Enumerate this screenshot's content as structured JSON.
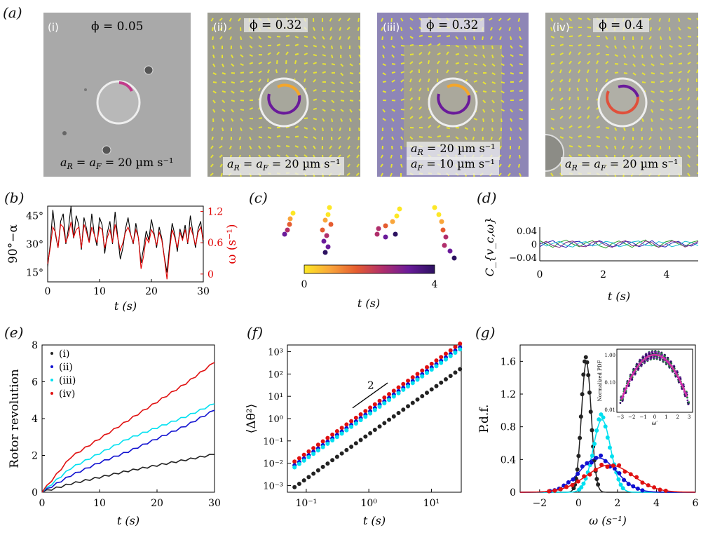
{
  "panel_labels": {
    "a": "(a)",
    "b": "(b)",
    "c": "(c)",
    "d": "(d)",
    "e": "(e)",
    "f": "(f)",
    "g": "(g)"
  },
  "micrographs": [
    {
      "tag": "(i)",
      "phi": "ϕ = 0.05",
      "speed": [
        "a_R = a_F = 20 µm s⁻¹"
      ]
    },
    {
      "tag": "(ii)",
      "phi": "ϕ = 0.32",
      "speed": [
        "a_R = a_F = 20 µm s⁻¹"
      ]
    },
    {
      "tag": "(iii)",
      "phi": "ϕ = 0.32",
      "speed": [
        "a_R = 20 µm s⁻¹",
        "a_F = 10 µm s⁻¹"
      ]
    },
    {
      "tag": "(iv)",
      "phi": "ϕ = 0.4",
      "speed": [
        "a_R = a_F = 20 µm s⁻¹"
      ]
    }
  ],
  "chart_data": [
    {
      "id": "b",
      "type": "line",
      "xlabel": "t (s)",
      "ylabel_left": "90°−α",
      "ylabel_right": "ω (s⁻¹)",
      "xlim": [
        0,
        30
      ],
      "xticks": [
        "0",
        "10",
        "20",
        "30"
      ],
      "ylim_left": [
        10,
        50
      ],
      "yticks_left": [
        "15°",
        "30°",
        "45°"
      ],
      "ylim_right": [
        -0.15,
        1.3
      ],
      "yticks_right": [
        "0",
        "0.6",
        "1.2"
      ],
      "colors": {
        "left": "#000000",
        "right": "#e00000"
      },
      "series": [
        {
          "axis": "left",
          "x": [
            0,
            0.5,
            1,
            1.5,
            2,
            2.5,
            3,
            3.5,
            4,
            4.5,
            5,
            5.5,
            6,
            6.5,
            7,
            7.5,
            8,
            8.5,
            9,
            9.5,
            10,
            10.5,
            11,
            11.5,
            12,
            12.5,
            13,
            13.5,
            14,
            14.5,
            15,
            15.5,
            16,
            16.5,
            17,
            17.5,
            18,
            18.5,
            19,
            19.5,
            20,
            20.5,
            21,
            21.5,
            22,
            22.5,
            23,
            23.5,
            24,
            24.5,
            25,
            25.5,
            26,
            26.5,
            27,
            27.5,
            28,
            28.5,
            29,
            29.5,
            30
          ],
          "values": [
            18,
            30,
            48,
            35,
            28,
            42,
            46,
            30,
            38,
            50,
            33,
            45,
            40,
            27,
            44,
            38,
            31,
            46,
            35,
            29,
            44,
            40,
            25,
            36,
            42,
            30,
            47,
            34,
            22,
            28,
            38,
            44,
            35,
            30,
            41,
            33,
            20,
            28,
            37,
            32,
            43,
            36,
            28,
            39,
            33,
            23,
            15,
            29,
            41,
            35,
            26,
            38,
            33,
            40,
            30,
            45,
            36,
            28,
            38,
            42,
            30
          ]
        },
        {
          "axis": "right",
          "x": [
            0,
            0.5,
            1,
            1.5,
            2,
            2.5,
            3,
            3.5,
            4,
            4.5,
            5,
            5.5,
            6,
            6.5,
            7,
            7.5,
            8,
            8.5,
            9,
            9.5,
            10,
            10.5,
            11,
            11.5,
            12,
            12.5,
            13,
            13.5,
            14,
            14.5,
            15,
            15.5,
            16,
            16.5,
            17,
            17.5,
            18,
            18.5,
            19,
            19.5,
            20,
            20.5,
            21,
            21.5,
            22,
            22.5,
            23,
            23.5,
            24,
            24.5,
            25,
            25.5,
            26,
            26.5,
            27,
            27.5,
            28,
            28.5,
            29,
            29.5,
            30
          ],
          "values": [
            0.2,
            0.5,
            0.9,
            0.8,
            0.5,
            0.95,
            0.9,
            0.6,
            0.75,
            1.0,
            0.7,
            0.85,
            0.9,
            0.5,
            0.95,
            0.8,
            0.6,
            0.9,
            0.75,
            0.6,
            0.9,
            0.85,
            0.5,
            0.7,
            0.85,
            0.6,
            0.95,
            0.7,
            0.45,
            0.6,
            0.8,
            0.9,
            0.75,
            0.6,
            0.85,
            0.7,
            0.1,
            0.35,
            0.7,
            0.6,
            0.85,
            0.75,
            0.55,
            0.8,
            0.65,
            0.3,
            -0.1,
            0.45,
            0.85,
            0.7,
            0.5,
            0.8,
            0.65,
            0.85,
            0.6,
            0.9,
            0.75,
            0.55,
            0.8,
            0.9,
            0.65
          ]
        }
      ]
    },
    {
      "id": "c",
      "type": "scatter",
      "xlabel": "t (s)",
      "colorbar_ticks": [
        "0",
        "4"
      ],
      "colorbar_range": [
        0,
        4
      ]
    },
    {
      "id": "d",
      "type": "line",
      "xlabel": "t (s)",
      "ylabel": "C_{v_c,ω}",
      "xlim": [
        0,
        5
      ],
      "xticks": [
        "0",
        "2",
        "4"
      ],
      "ylim": [
        -0.05,
        0.05
      ],
      "yticks": [
        "−0.04",
        "0",
        "0.04"
      ],
      "series": [
        {
          "color": "#2ca02c",
          "values": [
            0.01,
            0.0,
            -0.01,
            0.005,
            0.012,
            0.0,
            -0.008,
            0.004,
            0.01,
            -0.005,
            -0.012,
            0.002,
            0.009,
            0.0,
            -0.01,
            0.004,
            0.012,
            -0.003,
            -0.009,
            0.006,
            0.011,
            0.0,
            -0.007,
            0.005,
            0.01
          ]
        },
        {
          "color": "#1f1fb4",
          "values": [
            -0.008,
            0.004,
            0.01,
            -0.004,
            -0.01,
            0.006,
            0.008,
            -0.006,
            -0.003,
            0.01,
            0.002,
            -0.008,
            -0.004,
            0.008,
            0.005,
            -0.008,
            -0.002,
            0.01,
            -0.004,
            -0.009,
            0.003,
            0.008,
            -0.004,
            -0.006,
            0.004
          ]
        },
        {
          "color": "#17becf",
          "values": [
            0.005,
            -0.006,
            0.002,
            0.008,
            -0.004,
            -0.009,
            0.004,
            0.007,
            -0.006,
            -0.002,
            0.008,
            0.004,
            -0.008,
            -0.004,
            0.006,
            0.009,
            -0.004,
            -0.006,
            0.007,
            0.003,
            -0.008,
            -0.003,
            0.008,
            0.004,
            -0.005
          ]
        },
        {
          "color": "#7f2a7f",
          "values": [
            0.0,
            0.008,
            -0.005,
            -0.01,
            0.005,
            0.009,
            -0.006,
            -0.008,
            0.006,
            0.008,
            -0.004,
            -0.01,
            0.004,
            0.01,
            -0.005,
            -0.006,
            0.009,
            0.004,
            -0.01,
            -0.002,
            0.009,
            0.005,
            -0.009,
            -0.002,
            0.008
          ]
        }
      ]
    },
    {
      "id": "e",
      "type": "line",
      "xlabel": "t (s)",
      "ylabel": "Rotor revolution",
      "xlim": [
        0,
        30
      ],
      "xticks": [
        "0",
        "10",
        "20",
        "30"
      ],
      "ylim": [
        0,
        8
      ],
      "yticks": [
        "0",
        "2",
        "4",
        "6",
        "8"
      ],
      "legend_position": "top-left",
      "series": [
        {
          "name": "(i)",
          "color": "#222222",
          "x": [
            0,
            5,
            10,
            15,
            20,
            25,
            30
          ],
          "values": [
            0,
            0.45,
            0.8,
            1.15,
            1.45,
            1.75,
            2.05
          ]
        },
        {
          "name": "(ii)",
          "color": "#1010d0",
          "x": [
            0,
            5,
            10,
            15,
            20,
            25,
            30
          ],
          "values": [
            0,
            0.9,
            1.6,
            2.2,
            2.9,
            3.6,
            4.45
          ]
        },
        {
          "name": "(iii)",
          "color": "#00e0f0",
          "x": [
            0,
            5,
            10,
            15,
            20,
            25,
            30
          ],
          "values": [
            0,
            1.3,
            2.1,
            2.9,
            3.5,
            4.1,
            4.8
          ]
        },
        {
          "name": "(iv)",
          "color": "#e01010",
          "x": [
            0,
            5,
            10,
            15,
            20,
            25,
            30
          ],
          "values": [
            0,
            1.9,
            2.9,
            3.9,
            4.9,
            5.9,
            7.05
          ]
        }
      ]
    },
    {
      "id": "f",
      "type": "scatter",
      "xlabel": "t (s)",
      "ylabel": "⟨Δθ²⟩",
      "xscale": "log",
      "yscale": "log",
      "xlim": [
        0.05,
        30
      ],
      "xticks": [
        "10⁻¹",
        "10⁰",
        "10¹"
      ],
      "ylim": [
        0.0005,
        2000
      ],
      "yticks": [
        "10⁻³",
        "10⁻²",
        "10⁻¹",
        "10⁰",
        "10¹",
        "10²",
        "10³"
      ],
      "slope_label": "2",
      "series": [
        {
          "color": "#e01010",
          "prefactor": 2.8
        },
        {
          "color": "#1010d0",
          "prefactor": 1.9
        },
        {
          "color": "#00e0f0",
          "prefactor": 1.55
        },
        {
          "color": "#222222",
          "prefactor": 0.2
        }
      ]
    },
    {
      "id": "g",
      "type": "line",
      "xlabel": "ω (s⁻¹)",
      "ylabel": "P.d.f.",
      "xlim": [
        -3,
        6
      ],
      "xticks": [
        "−2",
        "0",
        "2",
        "4",
        "6"
      ],
      "ylim": [
        0,
        1.8
      ],
      "yticks": [
        "0",
        "0.4",
        "0.8",
        "1.2",
        "1.6"
      ],
      "series": [
        {
          "color": "#222222",
          "mean": 0.4,
          "std": 0.25
        },
        {
          "color": "#00e0f0",
          "mean": 1.2,
          "std": 0.45
        },
        {
          "color": "#1010d0",
          "mean": 1.0,
          "std": 0.95
        },
        {
          "color": "#e01010",
          "mean": 1.6,
          "std": 1.2
        }
      ],
      "inset": {
        "ylabel": "Normalized PDF",
        "xlabel": "ω′",
        "xticks": [
          "−3",
          "−2",
          "−1",
          "0",
          "1",
          "2",
          "3"
        ],
        "yticks": [
          "0.01",
          "0.10",
          "1.00"
        ]
      }
    }
  ]
}
